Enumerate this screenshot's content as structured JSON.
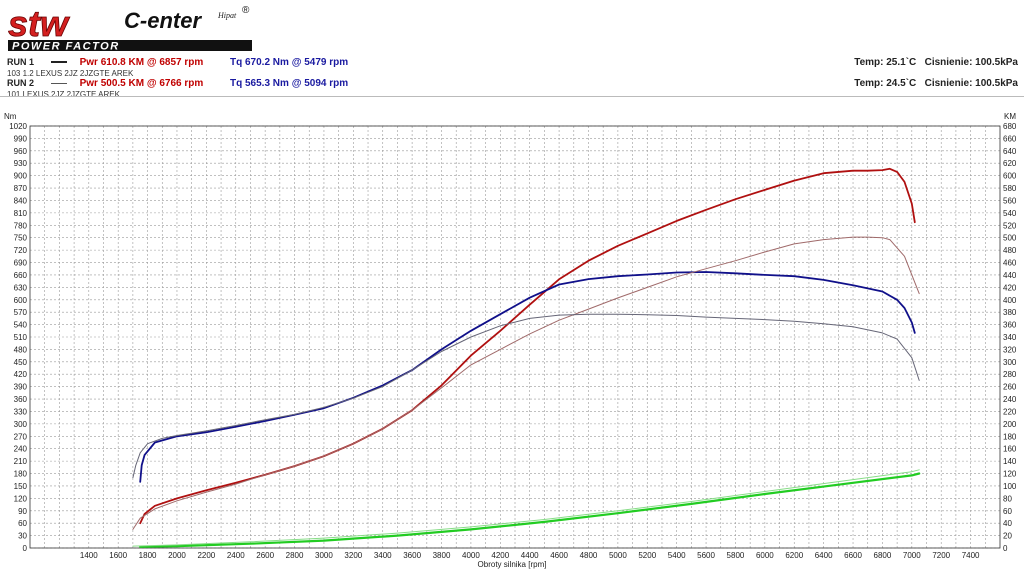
{
  "logo": {
    "brand": "stw",
    "center": "C-enter",
    "tagline": "POWER FACTOR",
    "signature": "Hipat",
    "reg": "®"
  },
  "runs": [
    {
      "label": "RUN 1",
      "pwr": "Pwr  610.8 KM @ 6857 rpm",
      "tq": "Tq 670.2 Nm @ 5479 rpm",
      "desc": "103 1.2 LEXUS 2JZ 2JZGTE AREK",
      "temp": "Temp: 25.1`C",
      "pressure": "Cisnienie: 100.5kPa"
    },
    {
      "label": "RUN 2",
      "pwr": "Pwr  500.5 KM @ 6766 rpm",
      "tq": "Tq 565.3 Nm @ 5094 rpm",
      "desc": "101 LEXUS 2JZ 2JZGTE AREK",
      "temp": "Temp: 24.5`C",
      "pressure": "Cisnienie: 100.5kPa"
    }
  ],
  "chart_data": {
    "type": "line",
    "xlabel": "Obroty silnika [rpm]",
    "ylabel_left": "Nm",
    "ylabel_right": "KM",
    "xlim": [
      1000,
      7600
    ],
    "ylim_left": [
      0,
      1020
    ],
    "ylim_right": [
      0,
      680
    ],
    "x_ticks": [
      1400,
      1600,
      1800,
      2000,
      2200,
      2400,
      2600,
      2800,
      3000,
      3200,
      3400,
      3600,
      3800,
      4000,
      4200,
      4400,
      4600,
      4800,
      5000,
      5200,
      5400,
      5600,
      5800,
      6000,
      6200,
      6400,
      6600,
      6800,
      7000,
      7200,
      7400
    ],
    "y_ticks_left": [
      0,
      30,
      60,
      90,
      120,
      150,
      180,
      210,
      240,
      270,
      300,
      330,
      360,
      390,
      420,
      450,
      480,
      510,
      540,
      570,
      600,
      630,
      660,
      690,
      720,
      750,
      780,
      810,
      840,
      870,
      900,
      930,
      960,
      990,
      1020
    ],
    "y_ticks_right": [
      0,
      20,
      40,
      60,
      80,
      100,
      120,
      140,
      160,
      180,
      200,
      220,
      240,
      260,
      280,
      300,
      320,
      340,
      360,
      380,
      400,
      420,
      440,
      460,
      480,
      500,
      520,
      540,
      560,
      580,
      600,
      620,
      640,
      660,
      680
    ],
    "grid": true,
    "colors": {
      "run1_pwr": "#b01010",
      "run1_tq": "#10108a",
      "run1_loss": "#22cc22",
      "run2_pwr": "#a06a6a",
      "run2_tq": "#666677",
      "run2_loss": "#88dd88"
    },
    "series": [
      {
        "name": "Pwr",
        "axis": "right",
        "colorKey": "run1_pwr",
        "width": 1.8,
        "x": [
          1750,
          1780,
          1850,
          2000,
          2200,
          2400,
          2600,
          2800,
          3000,
          3200,
          3400,
          3600,
          3800,
          4000,
          4200,
          4400,
          4600,
          4800,
          5000,
          5200,
          5400,
          5600,
          5800,
          6000,
          6200,
          6400,
          6600,
          6700,
          6800,
          6850,
          6900,
          6950,
          7000,
          7020
        ],
        "y": [
          40,
          55,
          68,
          80,
          93,
          105,
          118,
          132,
          148,
          168,
          192,
          222,
          262,
          310,
          350,
          392,
          433,
          463,
          487,
          507,
          527,
          545,
          562,
          577,
          592,
          604,
          608,
          608,
          609,
          611,
          606,
          590,
          555,
          525
        ]
      },
      {
        "name": "Tq",
        "axis": "left",
        "colorKey": "run1_tq",
        "width": 1.8,
        "x": [
          1750,
          1760,
          1780,
          1850,
          2000,
          2200,
          2400,
          2600,
          2800,
          3000,
          3200,
          3400,
          3600,
          3800,
          4000,
          4200,
          4400,
          4600,
          4800,
          5000,
          5200,
          5400,
          5600,
          5800,
          6000,
          6200,
          6400,
          6600,
          6800,
          6900,
          6950,
          7000,
          7020
        ],
        "y": [
          160,
          200,
          225,
          255,
          270,
          280,
          293,
          307,
          322,
          338,
          363,
          393,
          430,
          480,
          525,
          565,
          605,
          637,
          650,
          657,
          661,
          666,
          667,
          664,
          660,
          657,
          648,
          635,
          620,
          600,
          580,
          545,
          520
        ]
      },
      {
        "name": "Loss",
        "axis": "right",
        "colorKey": "run1_loss",
        "width": 2.2,
        "x": [
          1750,
          2000,
          2500,
          3000,
          3500,
          4000,
          4500,
          5000,
          5500,
          6000,
          6500,
          7000,
          7050
        ],
        "y": [
          2,
          3,
          7,
          12,
          20,
          30,
          42,
          56,
          71,
          87,
          102,
          117,
          120
        ]
      },
      {
        "name": "Pwr",
        "axis": "right",
        "colorKey": "run2_pwr",
        "width": 1,
        "x": [
          1700,
          1750,
          1850,
          2000,
          2200,
          2400,
          2600,
          2800,
          3000,
          3200,
          3400,
          3600,
          3800,
          4000,
          4200,
          4400,
          4600,
          4800,
          5000,
          5200,
          5400,
          5600,
          5800,
          6000,
          6200,
          6400,
          6600,
          6700,
          6800,
          6850,
          6950,
          7050
        ],
        "y": [
          30,
          48,
          63,
          76,
          90,
          103,
          118,
          132,
          148,
          168,
          192,
          222,
          258,
          295,
          320,
          345,
          367,
          385,
          403,
          420,
          437,
          450,
          463,
          477,
          490,
          497,
          501,
          501,
          500,
          497,
          470,
          410
        ]
      },
      {
        "name": "Tq",
        "axis": "left",
        "colorKey": "run2_tq",
        "width": 1,
        "x": [
          1700,
          1720,
          1750,
          1800,
          1900,
          2000,
          2200,
          2400,
          2600,
          2800,
          3000,
          3200,
          3400,
          3600,
          3800,
          4000,
          4200,
          4400,
          4600,
          4800,
          5000,
          5200,
          5400,
          5600,
          5800,
          6000,
          6200,
          6400,
          6600,
          6800,
          6900,
          7000,
          7050
        ],
        "y": [
          170,
          200,
          230,
          252,
          265,
          272,
          283,
          296,
          310,
          323,
          340,
          362,
          390,
          430,
          475,
          510,
          537,
          555,
          563,
          565,
          565,
          564,
          562,
          558,
          555,
          552,
          548,
          542,
          535,
          520,
          505,
          460,
          405
        ]
      },
      {
        "name": "Loss",
        "axis": "right",
        "colorKey": "run2_loss",
        "width": 1,
        "x": [
          1700,
          2000,
          2500,
          3000,
          3500,
          4000,
          4500,
          5000,
          5500,
          6000,
          6500,
          7000,
          7050
        ],
        "y": [
          3,
          5,
          10,
          16,
          24,
          34,
          46,
          60,
          75,
          91,
          107,
          123,
          126
        ]
      }
    ]
  }
}
